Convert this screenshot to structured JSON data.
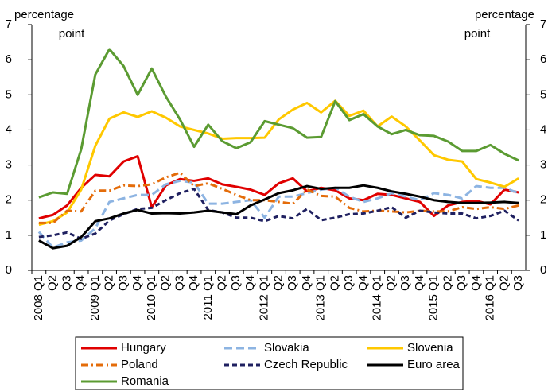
{
  "chart_data": {
    "type": "line",
    "ylabel_lines": [
      "percentage",
      "point"
    ],
    "y2label_lines": [
      "percentage",
      "point"
    ],
    "categories": [
      "2008 Q1",
      "Q2",
      "Q3",
      "Q4",
      "2009 Q1",
      "Q2",
      "Q3",
      "Q4",
      "2010 Q1",
      "Q2",
      "Q3",
      "Q4",
      "2011 Q1",
      "Q2",
      "Q3",
      "Q4",
      "2012 Q1",
      "Q2",
      "Q3",
      "Q4",
      "2013 Q1",
      "Q2",
      "Q3",
      "Q4",
      "2014 Q1",
      "Q2",
      "Q3",
      "Q4",
      "2015 Q1",
      "Q2",
      "Q3",
      "Q4",
      "2016 Q1",
      "Q2",
      "Q3"
    ],
    "ylim": [
      0,
      7
    ],
    "yticks": [
      0,
      1,
      2,
      3,
      4,
      5,
      6,
      7
    ],
    "y2lim": [
      0,
      7
    ],
    "y2ticks": [
      0,
      1,
      2,
      3,
      4,
      5,
      6,
      7
    ],
    "series": [
      {
        "name": "Hungary",
        "color": "#e00000",
        "style": "solid",
        "values": [
          1.48,
          1.58,
          1.85,
          2.35,
          2.72,
          2.68,
          3.1,
          3.25,
          1.8,
          2.42,
          2.6,
          2.55,
          2.62,
          2.45,
          2.38,
          2.3,
          2.15,
          2.48,
          2.62,
          2.25,
          2.35,
          2.28,
          2.05,
          2.0,
          2.18,
          2.15,
          2.05,
          1.95,
          1.55,
          1.85,
          1.95,
          1.98,
          1.88,
          2.3,
          2.22
        ]
      },
      {
        "name": "Slovakia",
        "color": "#8db4e2",
        "style": "dashed",
        "values": [
          1.1,
          0.65,
          0.8,
          0.85,
          1.2,
          1.95,
          2.05,
          2.15,
          2.15,
          2.45,
          2.55,
          2.5,
          1.9,
          1.9,
          1.95,
          2.0,
          1.5,
          2.1,
          2.1,
          2.2,
          2.3,
          2.35,
          2.1,
          1.95,
          2.05,
          2.2,
          2.1,
          2.0,
          2.2,
          2.15,
          2.05,
          2.4,
          2.35,
          2.35,
          2.2
        ]
      },
      {
        "name": "Slovenia",
        "color": "#ffc800",
        "style": "solid",
        "values": [
          1.3,
          1.4,
          1.65,
          2.3,
          3.55,
          4.32,
          4.5,
          4.37,
          4.53,
          4.35,
          4.1,
          4.0,
          3.9,
          3.75,
          3.77,
          3.77,
          3.78,
          4.3,
          4.58,
          4.77,
          4.5,
          4.83,
          4.4,
          4.55,
          4.1,
          4.38,
          4.1,
          3.7,
          3.28,
          3.15,
          3.1,
          2.6,
          2.5,
          2.38,
          2.62
        ]
      },
      {
        "name": "Poland",
        "color": "#e46c0a",
        "style": "dashdot",
        "values": [
          1.35,
          1.35,
          1.7,
          1.68,
          2.27,
          2.27,
          2.42,
          2.4,
          2.45,
          2.65,
          2.78,
          2.4,
          2.48,
          2.32,
          2.15,
          2.0,
          2.0,
          1.95,
          1.9,
          2.3,
          2.12,
          2.1,
          1.78,
          1.68,
          1.7,
          1.68,
          1.65,
          1.7,
          1.68,
          1.68,
          1.8,
          1.75,
          1.8,
          1.75,
          1.85
        ]
      },
      {
        "name": "Czech Republic",
        "color": "#1f2060",
        "style": "shortdash",
        "values": [
          0.95,
          1.0,
          1.08,
          0.9,
          1.05,
          1.42,
          1.6,
          1.75,
          1.78,
          2.0,
          2.2,
          2.32,
          1.72,
          1.65,
          1.5,
          1.5,
          1.4,
          1.55,
          1.48,
          1.75,
          1.43,
          1.5,
          1.6,
          1.62,
          1.7,
          1.8,
          1.5,
          1.7,
          1.65,
          1.62,
          1.62,
          1.48,
          1.55,
          1.7,
          1.42
        ]
      },
      {
        "name": "Euro area",
        "color": "#000000",
        "style": "solid",
        "values": [
          0.85,
          0.63,
          0.7,
          0.95,
          1.4,
          1.48,
          1.62,
          1.72,
          1.62,
          1.63,
          1.62,
          1.65,
          1.7,
          1.65,
          1.6,
          1.85,
          2.02,
          2.2,
          2.28,
          2.4,
          2.32,
          2.35,
          2.35,
          2.42,
          2.35,
          2.25,
          2.18,
          2.1,
          2.0,
          1.95,
          1.92,
          1.92,
          1.93,
          1.95,
          1.92
        ]
      },
      {
        "name": "Romania",
        "color": "#5b9b32",
        "style": "solid",
        "values": [
          2.08,
          2.22,
          2.18,
          3.45,
          5.58,
          6.3,
          5.82,
          5.0,
          5.75,
          4.95,
          4.3,
          3.52,
          4.15,
          3.68,
          3.48,
          3.65,
          4.25,
          4.15,
          4.05,
          3.78,
          3.8,
          4.82,
          4.28,
          4.45,
          4.1,
          3.88,
          4.0,
          3.85,
          3.83,
          3.67,
          3.4,
          3.4,
          3.57,
          3.32,
          3.13
        ]
      }
    ]
  }
}
